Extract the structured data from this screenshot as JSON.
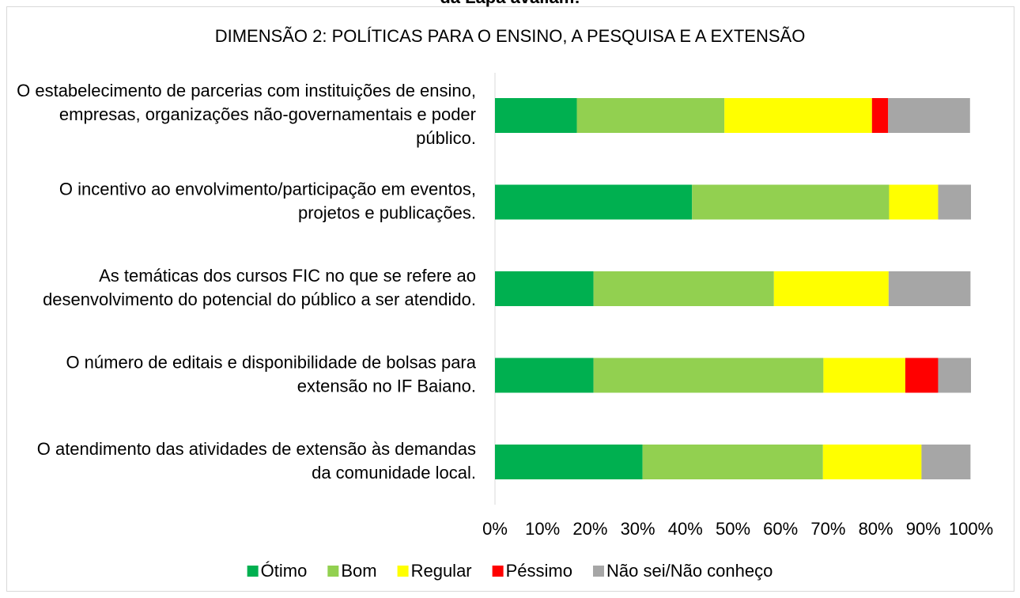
{
  "chart_data": {
    "type": "stacked_barh",
    "header_fragment": "da Lapa avaliam:",
    "title": "DIMENSÃO 2: POLÍTICAS PARA O ENSINO, A PESQUISA E A EXTENSÃO",
    "categories": [
      "O estabelecimento de parcerias com instituições de ensino, empresas, organizações não-governamentais e poder público.",
      "O incentivo ao envolvimento/participação em eventos, projetos e publicações.",
      "As temáticas dos cursos FIC no que se refere ao desenvolvimento do potencial do público a ser atendido.",
      "O número de editais e disponibilidade de bolsas para extensão no IF Baiano.",
      "O atendimento das atividades de extensão às demandas da comunidade local."
    ],
    "series": [
      {
        "name": "Ótimo",
        "color": "#00b050",
        "values": [
          17.2,
          41.4,
          20.7,
          20.7,
          31.0
        ]
      },
      {
        "name": "Bom",
        "color": "#92d050",
        "values": [
          31.0,
          41.4,
          37.9,
          48.3,
          37.9
        ]
      },
      {
        "name": "Regular",
        "color": "#ffff00",
        "values": [
          31.0,
          10.3,
          24.1,
          17.2,
          20.7
        ]
      },
      {
        "name": "Péssimo",
        "color": "#ff0000",
        "values": [
          3.4,
          0,
          0,
          6.9,
          0
        ]
      },
      {
        "name": "Não sei/Não conheço",
        "color": "#a6a6a6",
        "values": [
          17.2,
          6.9,
          17.2,
          6.9,
          10.3
        ]
      }
    ],
    "xlim": [
      0,
      100
    ],
    "xticks": [
      {
        "value": 0,
        "label": "0%"
      },
      {
        "value": 10,
        "label": "10%"
      },
      {
        "value": 20,
        "label": "20%"
      },
      {
        "value": 30,
        "label": "30%"
      },
      {
        "value": 40,
        "label": "40%"
      },
      {
        "value": 50,
        "label": "50%"
      },
      {
        "value": 60,
        "label": "60%"
      },
      {
        "value": 70,
        "label": "70%"
      },
      {
        "value": 80,
        "label": "80%"
      },
      {
        "value": 90,
        "label": "90%"
      },
      {
        "value": 100,
        "label": "100%"
      }
    ],
    "legend": "bottom"
  }
}
